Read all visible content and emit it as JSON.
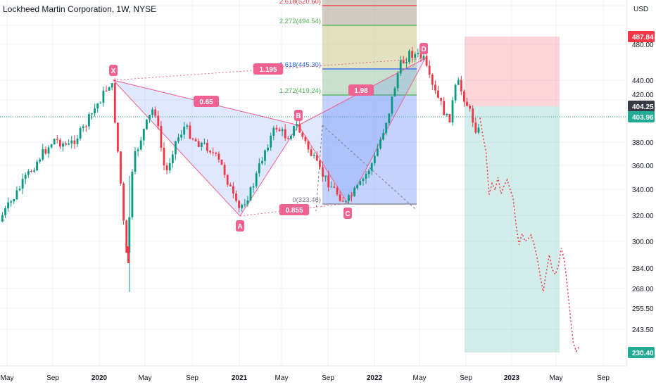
{
  "header": {
    "title": "Lockheed Martin Corporation, 1W, NYSE"
  },
  "chart_data": {
    "type": "candlestick",
    "price_axis": {
      "unit_label": "USD",
      "ticks": [
        "480.00",
        "440.00",
        "420.00",
        "380.00",
        "360.00",
        "340.00",
        "320.00",
        "300.00",
        "284.00",
        "268.00",
        "255.50",
        "243.50"
      ],
      "tick_values": [
        480,
        440,
        420,
        380,
        360,
        340,
        320,
        300,
        284,
        268,
        255.5,
        243.5
      ]
    },
    "time_axis": {
      "labels": [
        "May",
        "Sep",
        "2020",
        "May",
        "Sep",
        "2021",
        "May",
        "Sep",
        "2022",
        "May",
        "Sep",
        "2023",
        "May",
        "Sep"
      ]
    },
    "price_tags": [
      {
        "label": "487.84",
        "value": 487.84,
        "color": "#f23645",
        "kind": "target"
      },
      {
        "label": "404.25",
        "value": 404.25,
        "color": "#363a45",
        "kind": "entry"
      },
      {
        "label": "403.96",
        "value": 403.96,
        "color": "#22ab94",
        "kind": "last"
      },
      {
        "label": "230.40",
        "value": 230.4,
        "color": "#22ab94",
        "kind": "stop-target"
      }
    ],
    "fib_levels": [
      {
        "label": "2.618(520.60)",
        "value": 520.6,
        "color": "#f23645"
      },
      {
        "label": "2.272(494.54)",
        "value": 494.54,
        "color": "#4caf50"
      },
      {
        "label": "1.618(445.30)",
        "value": 445.3,
        "color": "#2962ff"
      },
      {
        "label": "1.272(419.24)",
        "value": 419.24,
        "color": "#4caf50"
      },
      {
        "label": "0(323.46)",
        "value": 323.46,
        "color": "#787b86"
      }
    ],
    "pattern_points": [
      {
        "name": "X",
        "value": 441,
        "color": "#f06292"
      },
      {
        "name": "A",
        "value": 318,
        "color": "#f06292"
      },
      {
        "name": "B",
        "value": 397,
        "color": "#f06292"
      },
      {
        "name": "C",
        "value": 325,
        "color": "#f06292"
      },
      {
        "name": "D",
        "value": 478,
        "color": "#f06292"
      }
    ],
    "ratio_labels": [
      "0.65",
      "1.195",
      "0.855",
      "1.98"
    ],
    "projection": [
      403,
      385,
      372,
      334,
      345,
      339,
      350,
      335,
      343,
      348,
      340,
      330,
      312,
      298,
      306,
      300,
      302,
      305,
      298,
      290,
      278,
      266,
      280,
      292,
      283,
      279,
      285,
      296,
      289,
      270,
      251,
      236,
      231,
      234
    ]
  }
}
